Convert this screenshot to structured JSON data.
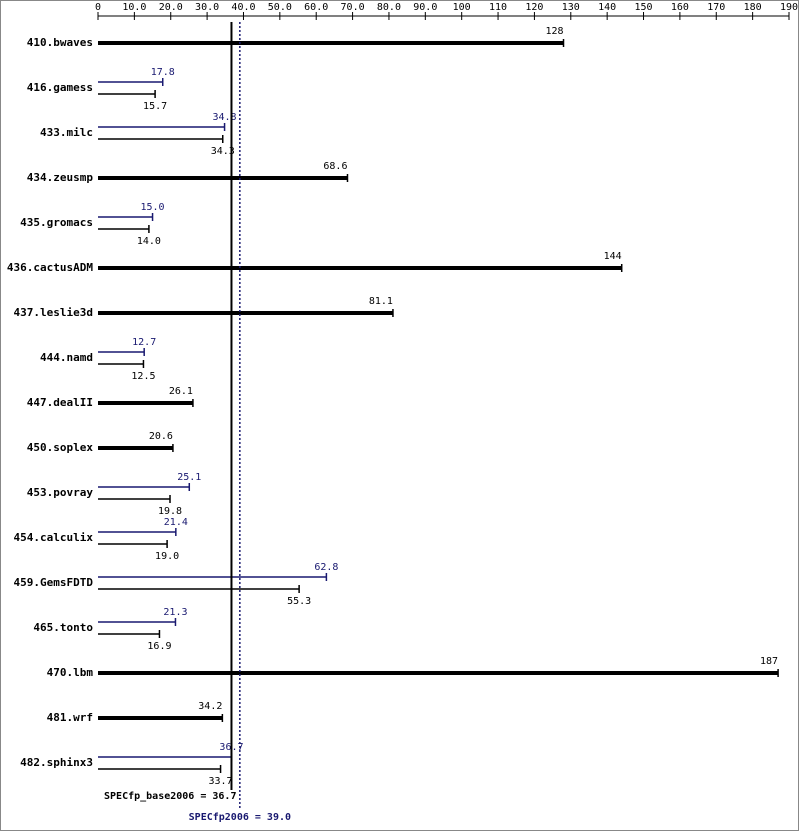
{
  "chart_data": {
    "type": "bar",
    "categories": [
      "410.bwaves",
      "416.gamess",
      "433.milc",
      "434.zeusmp",
      "435.gromacs",
      "436.cactusADM",
      "437.leslie3d",
      "444.namd",
      "447.dealII",
      "450.soplex",
      "453.povray",
      "454.calculix",
      "459.GemsFDTD",
      "465.tonto",
      "470.lbm",
      "481.wrf",
      "482.sphinx3"
    ],
    "base_values": [
      128,
      15.7,
      34.3,
      68.6,
      14.0,
      144,
      81.1,
      12.5,
      26.1,
      20.6,
      19.8,
      19.0,
      55.3,
      16.9,
      187,
      34.2,
      33.7
    ],
    "base_value_labels": [
      "128",
      "15.7",
      "34.3",
      "68.6",
      "14.0",
      "144",
      "81.1",
      "12.5",
      "26.1",
      "20.6",
      "19.8",
      "19.0",
      "55.3",
      "16.9",
      "187",
      "34.2",
      "33.7"
    ],
    "peak_values": [
      null,
      17.8,
      34.8,
      null,
      15.0,
      null,
      null,
      12.7,
      null,
      null,
      25.1,
      21.4,
      62.8,
      21.3,
      null,
      null,
      36.7
    ],
    "peak_value_labels": [
      null,
      "17.8",
      "34.8",
      null,
      "15.0",
      null,
      null,
      "12.7",
      null,
      null,
      "25.1",
      "21.4",
      "62.8",
      "21.3",
      null,
      null,
      "36.7"
    ],
    "base_color": "#000000",
    "peak_color": "#191970",
    "xlim": [
      0,
      190
    ],
    "xticks": [
      0,
      {
        "value": 10,
        "label": "10.0"
      },
      {
        "value": 20,
        "label": "20.0"
      },
      {
        "value": 30,
        "label": "30.0"
      },
      {
        "value": 40,
        "label": "40.0"
      },
      {
        "value": 50,
        "label": "50.0"
      },
      {
        "value": 60,
        "label": "60.0"
      },
      {
        "value": 70,
        "label": "70.0"
      },
      {
        "value": 80,
        "label": "80.0"
      },
      {
        "value": 90,
        "label": "90.0"
      },
      100,
      110,
      120,
      130,
      140,
      150,
      160,
      170,
      180,
      190
    ],
    "base_reference": {
      "label": "SPECfp_base2006 = 36.7",
      "value": 36.7
    },
    "peak_reference": {
      "label": "SPECfp2006 = 39.0",
      "value": 39.0
    }
  }
}
